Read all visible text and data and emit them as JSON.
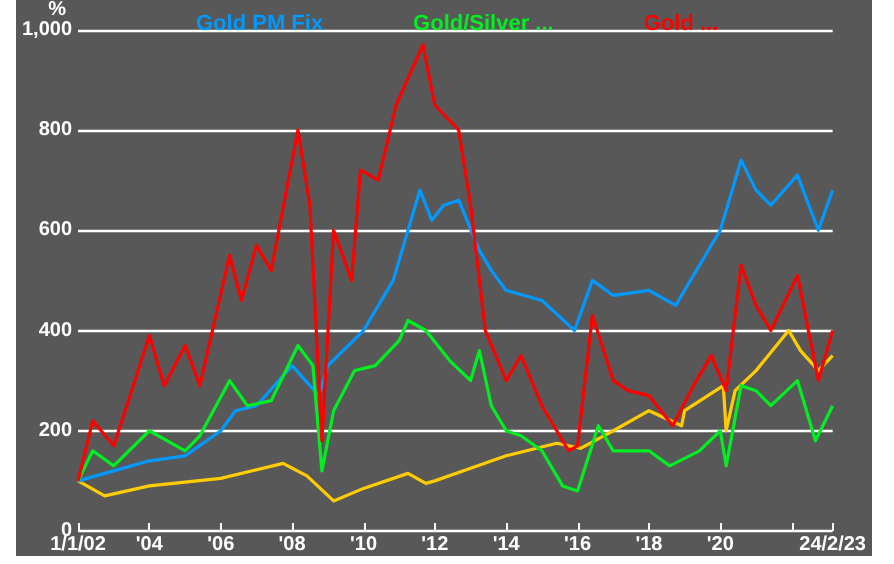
{
  "chart_data": {
    "type": "line",
    "ylabel": "%",
    "xlim": [
      "2002-01-01",
      "2023-02-24"
    ],
    "xticks": [
      {
        "value": "2002-01-01",
        "label": "1/1/02"
      },
      {
        "value": "2004-01-01",
        "label": "'04"
      },
      {
        "value": "2006-01-01",
        "label": "'06"
      },
      {
        "value": "2008-01-01",
        "label": "'08"
      },
      {
        "value": "2010-01-01",
        "label": "'10"
      },
      {
        "value": "2012-01-01",
        "label": "'12"
      },
      {
        "value": "2014-01-01",
        "label": "'14"
      },
      {
        "value": "2016-01-01",
        "label": "'16"
      },
      {
        "value": "2018-01-01",
        "label": "'18"
      },
      {
        "value": "2020-01-01",
        "label": "'20"
      },
      {
        "value": "2022-01-01",
        "label": null
      },
      {
        "value": "2023-02-24",
        "label": "24/2/23"
      }
    ],
    "ylim": [
      0,
      1000
    ],
    "yticks": [
      0,
      200,
      400,
      600,
      800,
      {
        "value": 1000,
        "label": "1,000"
      }
    ],
    "grid": "y",
    "legend": "top",
    "marker": "none",
    "line_style": "solid",
    "series": [
      {
        "color": "#ffcc00",
        "x": [
          "2002-01-01",
          "2002-10",
          "2004-01",
          "2006-01",
          "2007-10",
          "2008-06",
          "2009-03",
          "2010-01",
          "2011-04",
          "2011-10",
          "2012-01",
          "2013-01",
          "2014-01",
          "2015-06",
          "2016-02",
          "2017-01",
          "2018-01",
          "2018-12",
          "2019-01",
          "2020-02",
          "2020-03",
          "2020-06",
          "2021-01",
          "2021-12",
          "2022-04",
          "2022-10",
          "2023-02-24"
        ],
        "values": [
          100,
          70,
          90,
          105,
          135,
          110,
          60,
          85,
          115,
          95,
          100,
          125,
          150,
          175,
          165,
          200,
          240,
          210,
          240,
          290,
          200,
          280,
          320,
          400,
          360,
          320,
          350
        ]
      },
      {
        "name": "Gold PM Fix",
        "color": "#0099ff",
        "x": [
          "2002-01-01",
          "2003-01",
          "2004-01",
          "2005-01",
          "2006-01",
          "2006-06",
          "2007-01",
          "2008-01",
          "2008-10",
          "2009-01",
          "2010-01",
          "2010-11",
          "2011-08",
          "2011-12",
          "2012-04",
          "2012-09",
          "2013-04",
          "2013-08",
          "2014-01",
          "2015-01",
          "2015-12",
          "2016-06",
          "2017-01",
          "2018-01",
          "2018-10",
          "2019-06",
          "2020-01",
          "2020-08",
          "2021-01",
          "2021-06",
          "2022-03",
          "2022-10",
          "2023-02-24"
        ],
        "values": [
          100,
          120,
          140,
          150,
          200,
          240,
          250,
          330,
          270,
          330,
          400,
          500,
          680,
          620,
          650,
          660,
          560,
          520,
          480,
          460,
          400,
          500,
          470,
          480,
          450,
          530,
          600,
          740,
          680,
          650,
          710,
          600,
          680
        ]
      },
      {
        "name": "Gold/Silver ...",
        "color": "#00ee22",
        "x": [
          "2002-01-01",
          "2002-06",
          "2003-01",
          "2004-01",
          "2005-01",
          "2005-06",
          "2006-04",
          "2006-10",
          "2007-06",
          "2008-03",
          "2008-08",
          "2008-11",
          "2009-03",
          "2009-10",
          "2010-05",
          "2011-01",
          "2011-04",
          "2011-10",
          "2012-06",
          "2013-01",
          "2013-04",
          "2013-08",
          "2014-01",
          "2014-06",
          "2015-01",
          "2015-08",
          "2016-01",
          "2016-08",
          "2017-01",
          "2018-01",
          "2018-08",
          "2019-06",
          "2020-01",
          "2020-03",
          "2020-08",
          "2021-01",
          "2021-06",
          "2022-03",
          "2022-09",
          "2023-02-24"
        ],
        "values": [
          100,
          160,
          130,
          200,
          160,
          190,
          300,
          250,
          260,
          370,
          330,
          120,
          240,
          320,
          330,
          380,
          420,
          400,
          340,
          300,
          360,
          250,
          200,
          190,
          160,
          90,
          80,
          210,
          160,
          160,
          130,
          160,
          200,
          130,
          290,
          280,
          250,
          300,
          180,
          250
        ]
      },
      {
        "name": "Gold ...",
        "color": "#ff0000",
        "x": [
          "2002-01-01",
          "2002-06",
          "2003-01",
          "2003-06",
          "2004-01",
          "2004-06",
          "2005-01",
          "2005-06",
          "2006-04",
          "2006-08",
          "2007-01",
          "2007-06",
          "2008-03",
          "2008-07",
          "2008-11",
          "2009-03",
          "2009-09",
          "2009-12",
          "2010-06",
          "2010-12",
          "2011-09",
          "2012-01",
          "2012-09",
          "2013-01",
          "2013-06",
          "2014-01",
          "2014-06",
          "2015-01",
          "2015-10",
          "2016-01",
          "2016-06",
          "2017-01",
          "2017-06",
          "2018-01",
          "2018-09",
          "2019-04",
          "2019-10",
          "2020-03",
          "2020-08",
          "2021-01",
          "2021-06",
          "2022-03",
          "2022-10",
          "2023-02-24"
        ],
        "values": [
          100,
          220,
          170,
          260,
          390,
          290,
          370,
          290,
          550,
          460,
          570,
          520,
          800,
          650,
          180,
          600,
          500,
          720,
          700,
          850,
          970,
          850,
          800,
          650,
          400,
          300,
          350,
          250,
          160,
          170,
          430,
          300,
          280,
          270,
          210,
          290,
          350,
          280,
          530,
          450,
          400,
          510,
          300,
          400
        ]
      }
    ]
  }
}
